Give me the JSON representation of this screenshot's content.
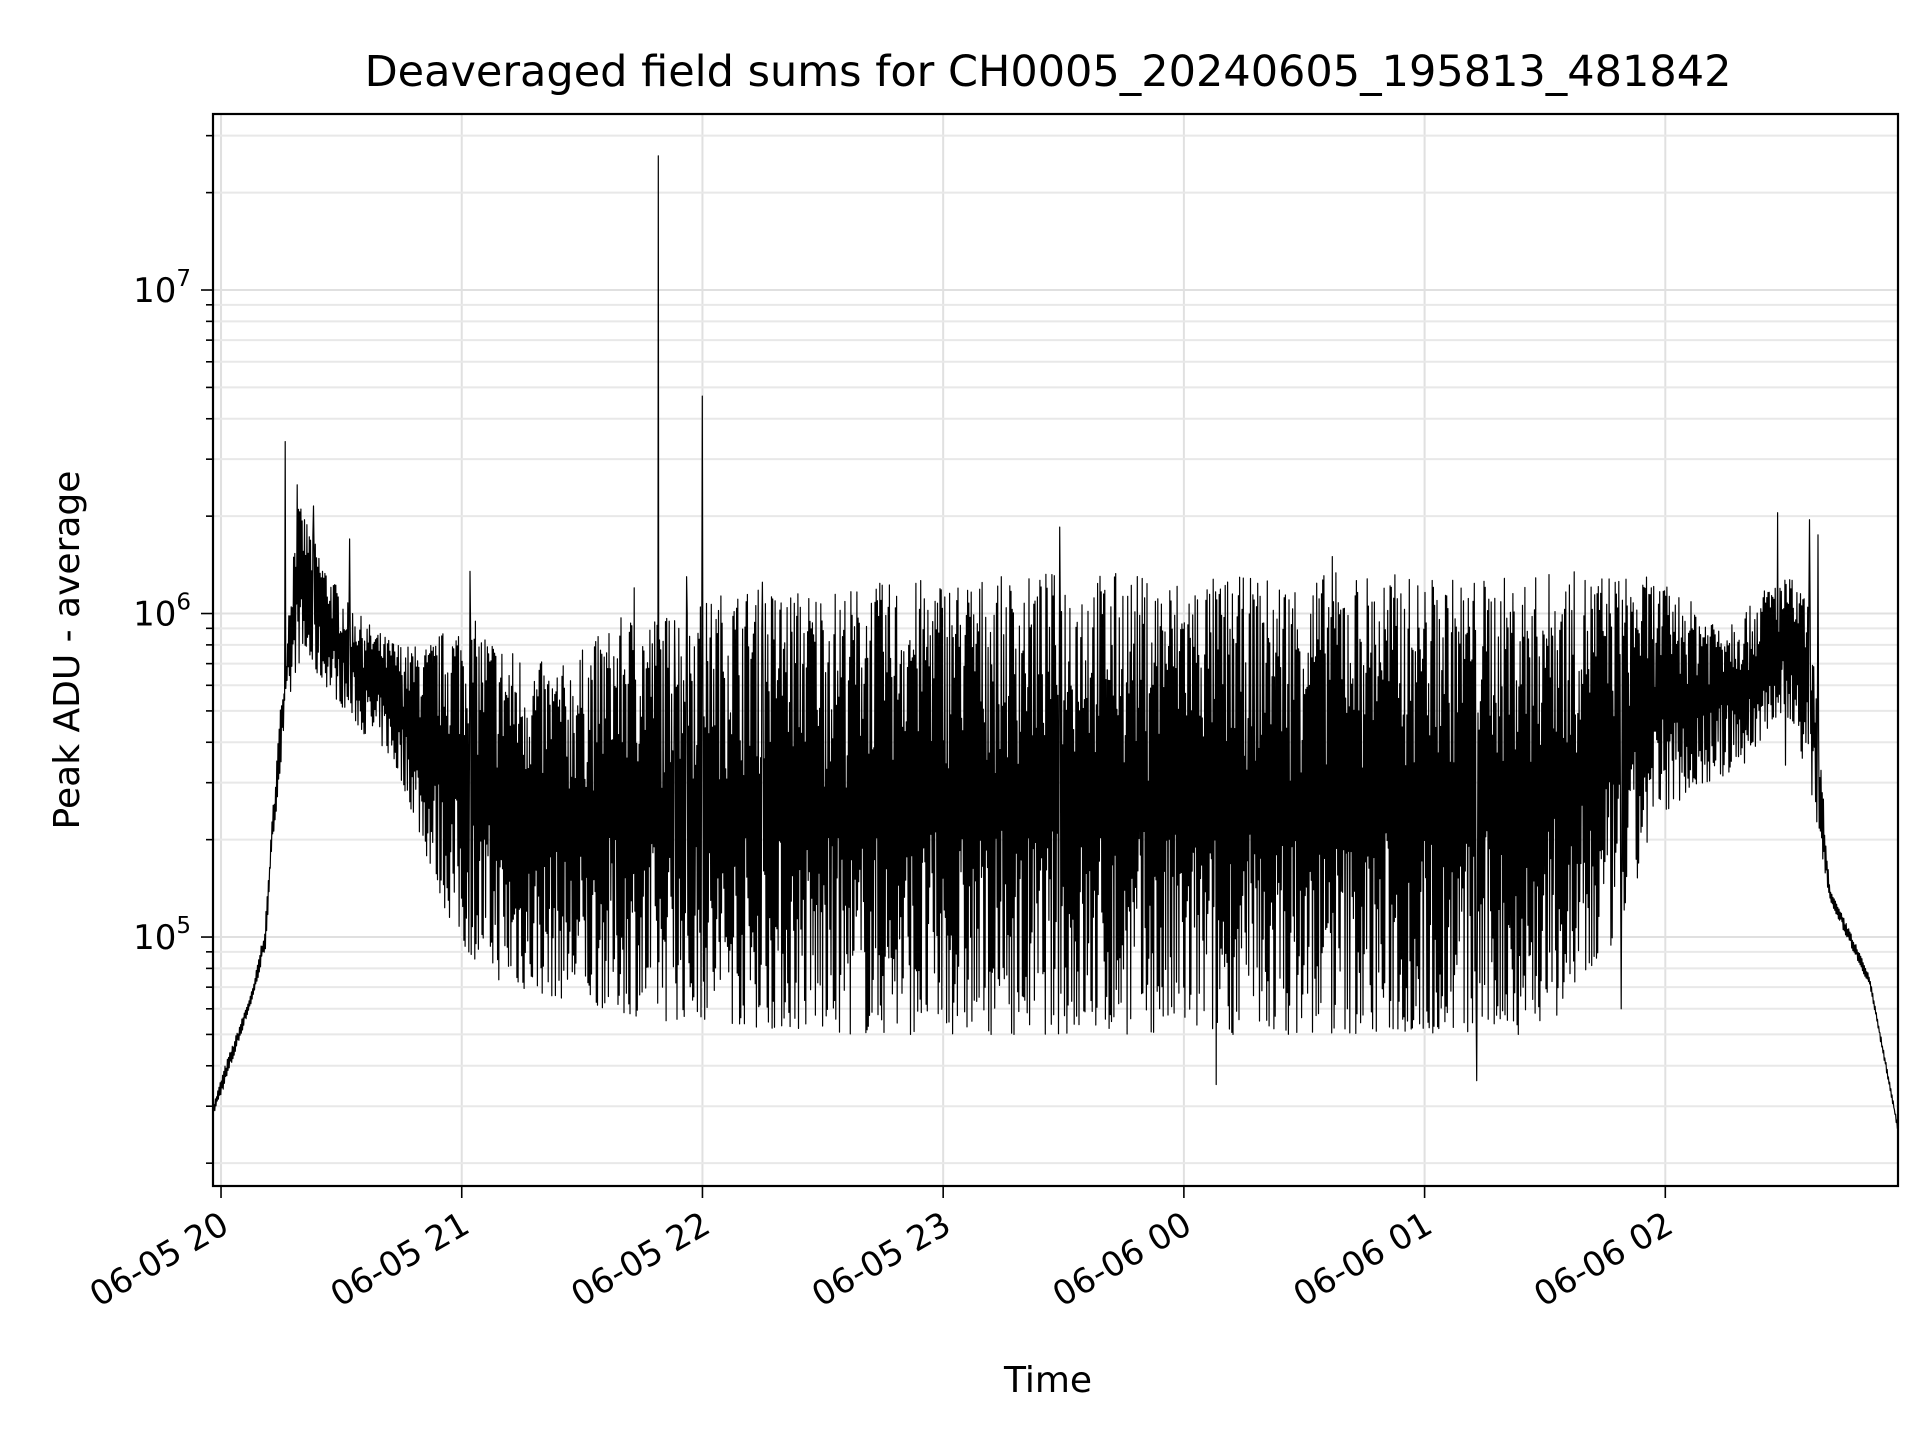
{
  "chart_data": {
    "type": "line",
    "title": "Deaveraged field sums for CH0005_20240605_195813_481842",
    "xlabel": "Time",
    "ylabel": "Peak ADU - average",
    "y_scale": "log",
    "grid": true,
    "line_color": "#000000",
    "xlim": [
      "2024-06-05 19:58",
      "2024-06-06 02:58"
    ],
    "ylim": [
      17000,
      35000000
    ],
    "x_ticks": [
      {
        "value": "2024-06-05 20:00",
        "label": "06-05 20"
      },
      {
        "value": "2024-06-05 21:00",
        "label": "06-05 21"
      },
      {
        "value": "2024-06-05 22:00",
        "label": "06-05 22"
      },
      {
        "value": "2024-06-05 23:00",
        "label": "06-05 23"
      },
      {
        "value": "2024-06-06 00:00",
        "label": "06-06 00"
      },
      {
        "value": "2024-06-06 01:00",
        "label": "06-06 01"
      },
      {
        "value": "2024-06-06 02:00",
        "label": "06-06 02"
      }
    ],
    "y_ticks": [
      {
        "value": 100000,
        "base": "10",
        "exp": "5"
      },
      {
        "value": 1000000,
        "base": "10",
        "exp": "6"
      },
      {
        "value": 10000000,
        "base": "10",
        "exp": "7"
      }
    ],
    "series": [
      {
        "x": [
          "2024-06-05 19:58",
          "2024-06-05 20:01",
          "2024-06-05 20:05",
          "2024-06-05 20:08",
          "2024-06-05 20:11",
          "2024-06-05 20:13",
          "2024-06-05 20:16",
          "2024-06-05 20:19",
          "2024-06-05 20:21",
          "2024-06-05 20:26",
          "2024-06-05 20:31",
          "2024-06-05 20:36",
          "2024-06-05 20:41",
          "2024-06-05 20:46",
          "2024-06-05 20:51",
          "2024-06-05 20:56",
          "2024-06-05 21:01",
          "2024-06-05 21:06",
          "2024-06-05 21:11",
          "2024-06-05 21:16",
          "2024-06-05 21:21",
          "2024-06-05 21:26",
          "2024-06-05 21:31",
          "2024-06-05 21:36",
          "2024-06-05 21:41",
          "2024-06-05 21:46",
          "2024-06-05 21:51",
          "2024-06-05 21:56",
          "2024-06-05 22:01",
          "2024-06-05 22:06",
          "2024-06-05 22:11",
          "2024-06-05 22:16",
          "2024-06-05 22:21",
          "2024-06-05 22:26",
          "2024-06-05 22:31",
          "2024-06-05 22:36",
          "2024-06-05 22:41",
          "2024-06-05 22:46",
          "2024-06-05 22:51",
          "2024-06-05 22:56",
          "2024-06-05 23:01",
          "2024-06-05 23:06",
          "2024-06-05 23:11",
          "2024-06-05 23:16",
          "2024-06-05 23:21",
          "2024-06-05 23:26",
          "2024-06-05 23:31",
          "2024-06-05 23:36",
          "2024-06-05 23:41",
          "2024-06-05 23:46",
          "2024-06-05 23:51",
          "2024-06-05 23:56",
          "2024-06-06 00:01",
          "2024-06-06 00:06",
          "2024-06-06 00:11",
          "2024-06-06 00:16",
          "2024-06-06 00:21",
          "2024-06-06 00:26",
          "2024-06-06 00:31",
          "2024-06-06 00:36",
          "2024-06-06 00:41",
          "2024-06-06 00:46",
          "2024-06-06 00:51",
          "2024-06-06 00:56",
          "2024-06-06 01:01",
          "2024-06-06 01:06",
          "2024-06-06 01:11",
          "2024-06-06 01:16",
          "2024-06-06 01:21",
          "2024-06-06 01:26",
          "2024-06-06 01:31",
          "2024-06-06 01:36",
          "2024-06-06 01:41",
          "2024-06-06 01:46",
          "2024-06-06 01:51",
          "2024-06-06 01:56",
          "2024-06-06 02:01",
          "2024-06-06 02:06",
          "2024-06-06 02:11",
          "2024-06-06 02:16",
          "2024-06-06 02:21",
          "2024-06-06 02:26",
          "2024-06-06 02:31",
          "2024-06-06 02:36",
          "2024-06-06 02:41",
          "2024-06-06 02:46",
          "2024-06-06 02:51",
          "2024-06-06 02:58"
        ],
        "lower": [
          28000,
          35000,
          50000,
          65000,
          90000,
          200000,
          450000,
          700000,
          700000,
          600000,
          500000,
          420000,
          380000,
          280000,
          180000,
          120000,
          90000,
          80000,
          70000,
          68000,
          66000,
          64000,
          62000,
          60000,
          58000,
          56000,
          55000,
          56000,
          55000,
          54000,
          53000,
          52000,
          52000,
          51000,
          50000,
          50000,
          50000,
          50000,
          50000,
          50000,
          50000,
          50000,
          50000,
          50000,
          50000,
          50000,
          50000,
          50000,
          50000,
          50000,
          50000,
          50000,
          50000,
          50000,
          50000,
          50000,
          50000,
          50000,
          50000,
          50000,
          50000,
          50000,
          50000,
          50000,
          50000,
          50000,
          50000,
          50000,
          50000,
          50000,
          55000,
          60000,
          70000,
          90000,
          120000,
          200000,
          250000,
          280000,
          300000,
          320000,
          350000,
          450000,
          480000,
          300000,
          130000,
          95000,
          70000,
          25000
        ],
        "upper": [
          30000,
          40000,
          55000,
          70000,
          110000,
          260000,
          800000,
          2200000,
          2000000,
          1400000,
          1100000,
          950000,
          850000,
          800000,
          800000,
          900000,
          1000000,
          900000,
          800000,
          750000,
          700000,
          700000,
          800000,
          900000,
          1000000,
          1000000,
          1000000,
          1100000,
          1100000,
          1200000,
          1200000,
          1200000,
          1200000,
          1200000,
          1200000,
          1200000,
          1250000,
          1250000,
          1250000,
          1300000,
          1300000,
          1300000,
          1300000,
          1300000,
          1300000,
          1350000,
          1350000,
          1350000,
          1350000,
          1350000,
          1300000,
          1300000,
          1300000,
          1300000,
          1300000,
          1300000,
          1300000,
          1300000,
          1300000,
          1350000,
          1350000,
          1350000,
          1350000,
          1300000,
          1300000,
          1300000,
          1300000,
          1300000,
          1300000,
          1300000,
          1350000,
          1350000,
          1350000,
          1350000,
          1300000,
          1300000,
          1200000,
          1100000,
          1000000,
          1000000,
          1050000,
          1250000,
          1300000,
          1100000,
          140000,
          105000,
          75000,
          26000
        ],
        "spikes": [
          {
            "x": "2024-06-05 20:16",
            "y": 3400000
          },
          {
            "x": "2024-06-05 20:19",
            "y": 2500000
          },
          {
            "x": "2024-06-05 20:23",
            "y": 2150000
          },
          {
            "x": "2024-06-05 20:32",
            "y": 1700000
          },
          {
            "x": "2024-06-05 21:02",
            "y": 1350000
          },
          {
            "x": "2024-06-05 21:06",
            "y": 115000
          },
          {
            "x": "2024-06-05 21:43",
            "y": 1200000
          },
          {
            "x": "2024-06-05 21:49",
            "y": 26000000
          },
          {
            "x": "2024-06-05 21:53",
            "y": 950000
          },
          {
            "x": "2024-06-05 21:56",
            "y": 1300000
          },
          {
            "x": "2024-06-05 22:00",
            "y": 4700000
          },
          {
            "x": "2024-06-05 22:15",
            "y": 1250000
          },
          {
            "x": "2024-06-05 23:29",
            "y": 1850000
          },
          {
            "x": "2024-06-06 00:08",
            "y": 35000
          },
          {
            "x": "2024-06-06 00:37",
            "y": 1500000
          },
          {
            "x": "2024-06-06 01:13",
            "y": 36000
          },
          {
            "x": "2024-06-06 01:49",
            "y": 60000
          },
          {
            "x": "2024-06-06 02:28",
            "y": 2050000
          },
          {
            "x": "2024-06-06 02:36",
            "y": 1950000
          },
          {
            "x": "2024-06-06 02:38",
            "y": 1750000
          },
          {
            "x": "2024-06-06 02:30",
            "y": 340000
          }
        ]
      }
    ]
  }
}
